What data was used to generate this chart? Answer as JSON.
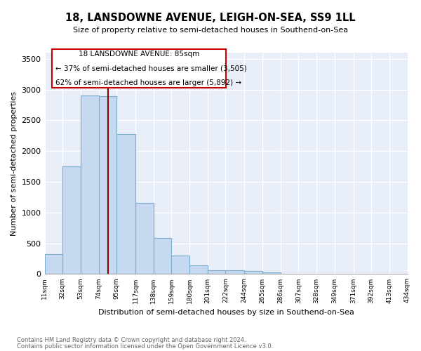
{
  "title": "18, LANSDOWNE AVENUE, LEIGH-ON-SEA, SS9 1LL",
  "subtitle": "Size of property relative to semi-detached houses in Southend-on-Sea",
  "xlabel": "Distribution of semi-detached houses by size in Southend-on-Sea",
  "ylabel": "Number of semi-detached properties",
  "footnote1": "Contains HM Land Registry data © Crown copyright and database right 2024.",
  "footnote2": "Contains public sector information licensed under the Open Government Licence v3.0.",
  "property_size": 85,
  "annotation_line1": "18 LANSDOWNE AVENUE: 85sqm",
  "annotation_line2": "← 37% of semi-detached houses are smaller (3,505)",
  "annotation_line3": "62% of semi-detached houses are larger (5,892) →",
  "bar_color": "#c6d9f0",
  "bar_edge_color": "#7aadce",
  "vline_color": "#8b0000",
  "annotation_box_color": "#cc0000",
  "bin_edges": [
    11,
    32,
    53,
    74,
    95,
    117,
    138,
    159,
    180,
    201,
    222,
    244,
    265,
    286,
    307,
    328,
    349,
    371,
    392,
    413,
    434
  ],
  "bin_counts": [
    330,
    1750,
    2900,
    2890,
    2280,
    1160,
    590,
    305,
    140,
    65,
    65,
    50,
    25,
    0,
    0,
    0,
    0,
    0,
    0,
    0
  ],
  "ylim": [
    0,
    3600
  ],
  "yticks": [
    0,
    500,
    1000,
    1500,
    2000,
    2500,
    3000,
    3500
  ],
  "background_color": "#e8eef8"
}
